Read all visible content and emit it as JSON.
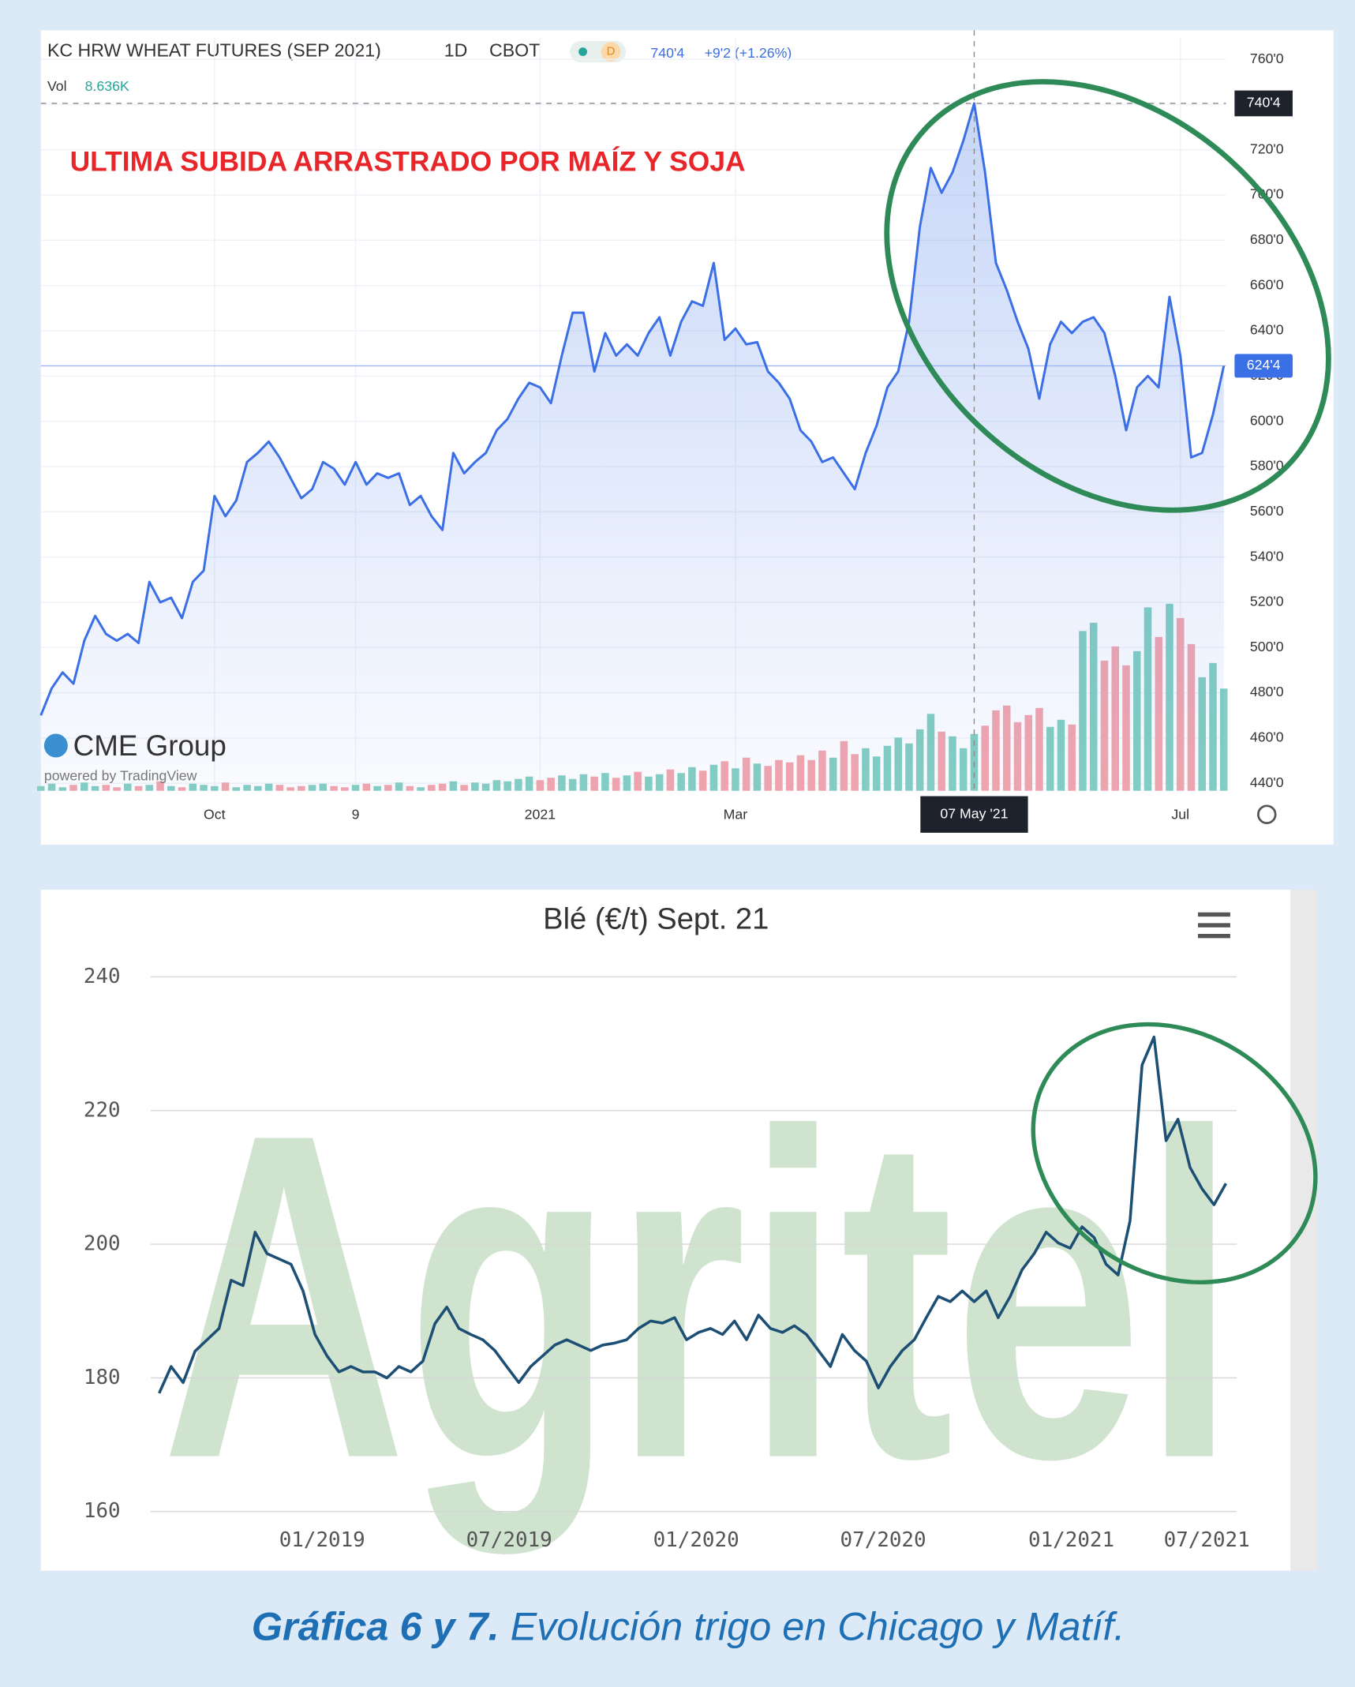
{
  "chart_data": [
    {
      "type": "line",
      "title": "KC HRW WHEAT FUTURES (SEP 2021)",
      "interval": "1D",
      "exchange": "CBOT",
      "badge": "D",
      "quote": "740'4",
      "change": "+9'2 (+1.26%)",
      "vol_label": "Vol",
      "vol_text": "8.636K",
      "annotation": "ULTIMA SUBIDA ARRASTRADO POR MAÍZ Y SOJA",
      "brand": "CME Group",
      "powered_by": "powered by TradingView",
      "color": "#3b6fe6",
      "values": [
        470,
        482,
        489,
        484,
        503,
        514,
        506,
        503,
        506,
        502,
        529,
        520,
        522,
        513,
        529,
        534,
        567,
        558,
        565,
        582,
        586,
        591,
        584,
        575,
        566,
        570,
        582,
        579,
        572,
        582,
        572,
        577,
        575,
        577,
        563,
        567,
        558,
        552,
        586,
        577,
        582,
        586,
        596,
        601,
        610,
        617,
        615,
        608,
        629,
        648,
        648,
        622,
        639,
        629,
        634,
        629,
        639,
        646,
        629,
        644,
        653,
        651,
        670,
        636,
        641,
        634,
        635,
        622,
        617,
        610,
        596,
        591,
        582,
        584,
        577,
        570,
        586,
        598,
        615,
        622,
        644,
        686,
        712,
        701,
        710,
        724,
        740.5,
        710,
        670,
        658,
        644,
        632,
        610,
        634,
        644,
        639,
        644,
        646,
        639,
        620,
        596,
        615,
        620,
        615,
        655,
        629,
        584,
        586,
        603,
        624.5
      ],
      "volume": {
        "values": [
          0.4,
          0.6,
          0.3,
          0.5,
          0.7,
          0.4,
          0.5,
          0.3,
          0.6,
          0.4,
          0.5,
          0.8,
          0.4,
          0.3,
          0.6,
          0.5,
          0.4,
          0.7,
          0.3,
          0.5,
          0.4,
          0.6,
          0.5,
          0.3,
          0.4,
          0.5,
          0.6,
          0.4,
          0.3,
          0.5,
          0.6,
          0.4,
          0.5,
          0.7,
          0.4,
          0.3,
          0.5,
          0.6,
          0.8,
          0.5,
          0.7,
          0.6,
          0.9,
          0.8,
          1.0,
          1.2,
          0.9,
          1.1,
          1.3,
          1.0,
          1.4,
          1.2,
          1.5,
          1.1,
          1.3,
          1.6,
          1.2,
          1.4,
          1.8,
          1.5,
          2.0,
          1.7,
          2.2,
          2.5,
          1.9,
          2.8,
          2.3,
          2.1,
          2.6,
          2.4,
          3.0,
          2.6,
          3.4,
          2.8,
          4.2,
          3.1,
          3.6,
          2.9,
          3.8,
          4.5,
          4.0,
          5.2,
          6.5,
          5.0,
          4.6,
          3.6,
          4.8,
          5.5,
          6.8,
          7.2,
          5.8,
          6.4,
          7.0,
          5.4,
          6.0,
          5.6,
          13.5,
          14.2,
          11.0,
          12.2,
          10.6,
          11.8,
          15.5,
          13.0,
          15.8,
          14.6,
          12.4,
          9.6,
          10.8,
          8.636
        ],
        "vlim": [
          0,
          20
        ],
        "up_color": "#84cfc2",
        "down_color": "#f4a6ad"
      },
      "xlim": [
        0,
        109
      ],
      "xticks": [
        {
          "value": 16,
          "label": "Oct"
        },
        {
          "value": 29,
          "label": "9"
        },
        {
          "value": 46,
          "label": "2021"
        },
        {
          "value": 64,
          "label": "Mar"
        },
        {
          "value": 105,
          "label": "Jul"
        }
      ],
      "ylim": [
        440,
        760
      ],
      "yticks": [
        {
          "value": 440,
          "label": "440'0"
        },
        {
          "value": 460,
          "label": "460'0"
        },
        {
          "value": 480,
          "label": "480'0"
        },
        {
          "value": 500,
          "label": "500'0"
        },
        {
          "value": 520,
          "label": "520'0"
        },
        {
          "value": 540,
          "label": "540'0"
        },
        {
          "value": 560,
          "label": "560'0"
        },
        {
          "value": 580,
          "label": "580'0"
        },
        {
          "value": 600,
          "label": "600'0"
        },
        {
          "value": 620,
          "label": "620'0"
        },
        {
          "value": 640,
          "label": "640'0"
        },
        {
          "value": 660,
          "label": "660'0"
        },
        {
          "value": 680,
          "label": "680'0"
        },
        {
          "value": 700,
          "label": "700'0"
        },
        {
          "value": 720,
          "label": "720'0"
        },
        {
          "value": 740,
          "label": "740'0"
        },
        {
          "value": 760,
          "label": "760'0"
        }
      ],
      "crosshair": {
        "x": {
          "value": 86,
          "label": "07 May '21"
        },
        "y": {
          "value": 740.5,
          "label": "740'4"
        }
      },
      "last_price": {
        "value": 624.5,
        "label": "624'4"
      },
      "grid": true
    },
    {
      "type": "line",
      "title": "Blé (€/t) Sept. 21",
      "watermark": "Agritel",
      "color": "#1c4f73",
      "values": [
        177.7,
        181.7,
        179.3,
        184,
        185.7,
        187.4,
        194.6,
        193.8,
        201.8,
        198.6,
        197.8,
        197,
        193,
        186.5,
        183.3,
        180.9,
        181.7,
        180.9,
        180.9,
        180,
        181.7,
        180.9,
        182.5,
        188.1,
        190.6,
        187.4,
        186.5,
        185.7,
        184.1,
        181.7,
        179.3,
        181.7,
        183.3,
        184.9,
        185.7,
        184.9,
        184.1,
        184.9,
        185.2,
        185.7,
        187.4,
        188.5,
        188.2,
        189,
        185.7,
        186.8,
        187.4,
        186.5,
        188.5,
        185.7,
        189.4,
        187.4,
        186.8,
        187.8,
        186.5,
        184.1,
        181.7,
        186.5,
        184.1,
        182.5,
        178.5,
        181.7,
        184.1,
        185.7,
        189,
        192.2,
        191.4,
        193,
        191.4,
        193,
        189,
        192.2,
        196.2,
        198.6,
        201.8,
        200.2,
        199.4,
        202.6,
        201,
        197,
        195.4,
        203.5,
        226.8,
        231,
        215.5,
        218.7,
        211.5,
        208.3,
        205.9,
        209.1
      ],
      "xlim": [
        0,
        89
      ],
      "xticks": [
        {
          "value": 13.6,
          "label": "01/2019"
        },
        {
          "value": 29.2,
          "label": "07/2019"
        },
        {
          "value": 44.8,
          "label": "01/2020"
        },
        {
          "value": 60.4,
          "label": "07/2020"
        },
        {
          "value": 76.1,
          "label": "01/2021"
        },
        {
          "value": 87.4,
          "label": "07/2021"
        }
      ],
      "ylim": [
        160,
        240
      ],
      "yticks": [
        160,
        180,
        200,
        220,
        240
      ],
      "grid": true
    }
  ],
  "caption": {
    "label": "Gráfica 6 y 7.",
    "text": "Evolución trigo en Chicago y Matíf."
  }
}
